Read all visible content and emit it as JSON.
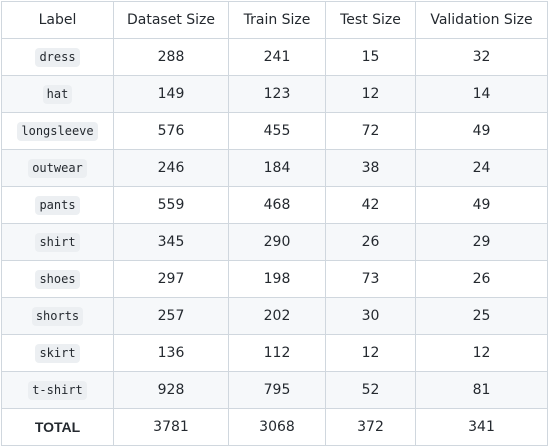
{
  "table": {
    "headers": [
      "Label",
      "Dataset Size",
      "Train Size",
      "Test Size",
      "Validation Size"
    ],
    "rows": [
      {
        "label": "dress",
        "dataset": "288",
        "train": "241",
        "test": "15",
        "validation": "32"
      },
      {
        "label": "hat",
        "dataset": "149",
        "train": "123",
        "test": "12",
        "validation": "14"
      },
      {
        "label": "longsleeve",
        "dataset": "576",
        "train": "455",
        "test": "72",
        "validation": "49"
      },
      {
        "label": "outwear",
        "dataset": "246",
        "train": "184",
        "test": "38",
        "validation": "24"
      },
      {
        "label": "pants",
        "dataset": "559",
        "train": "468",
        "test": "42",
        "validation": "49"
      },
      {
        "label": "shirt",
        "dataset": "345",
        "train": "290",
        "test": "26",
        "validation": "29"
      },
      {
        "label": "shoes",
        "dataset": "297",
        "train": "198",
        "test": "73",
        "validation": "26"
      },
      {
        "label": "shorts",
        "dataset": "257",
        "train": "202",
        "test": "30",
        "validation": "25"
      },
      {
        "label": "skirt",
        "dataset": "136",
        "train": "112",
        "test": "12",
        "validation": "12"
      },
      {
        "label": "t-shirt",
        "dataset": "928",
        "train": "795",
        "test": "52",
        "validation": "81"
      }
    ],
    "total": {
      "label": "TOTAL",
      "dataset": "3781",
      "train": "3068",
      "test": "372",
      "validation": "341"
    }
  },
  "colors": {
    "border": "#d0d7de",
    "alt_row": "#f6f8fa",
    "code_bg": "#eceff2",
    "text": "#24292f"
  }
}
